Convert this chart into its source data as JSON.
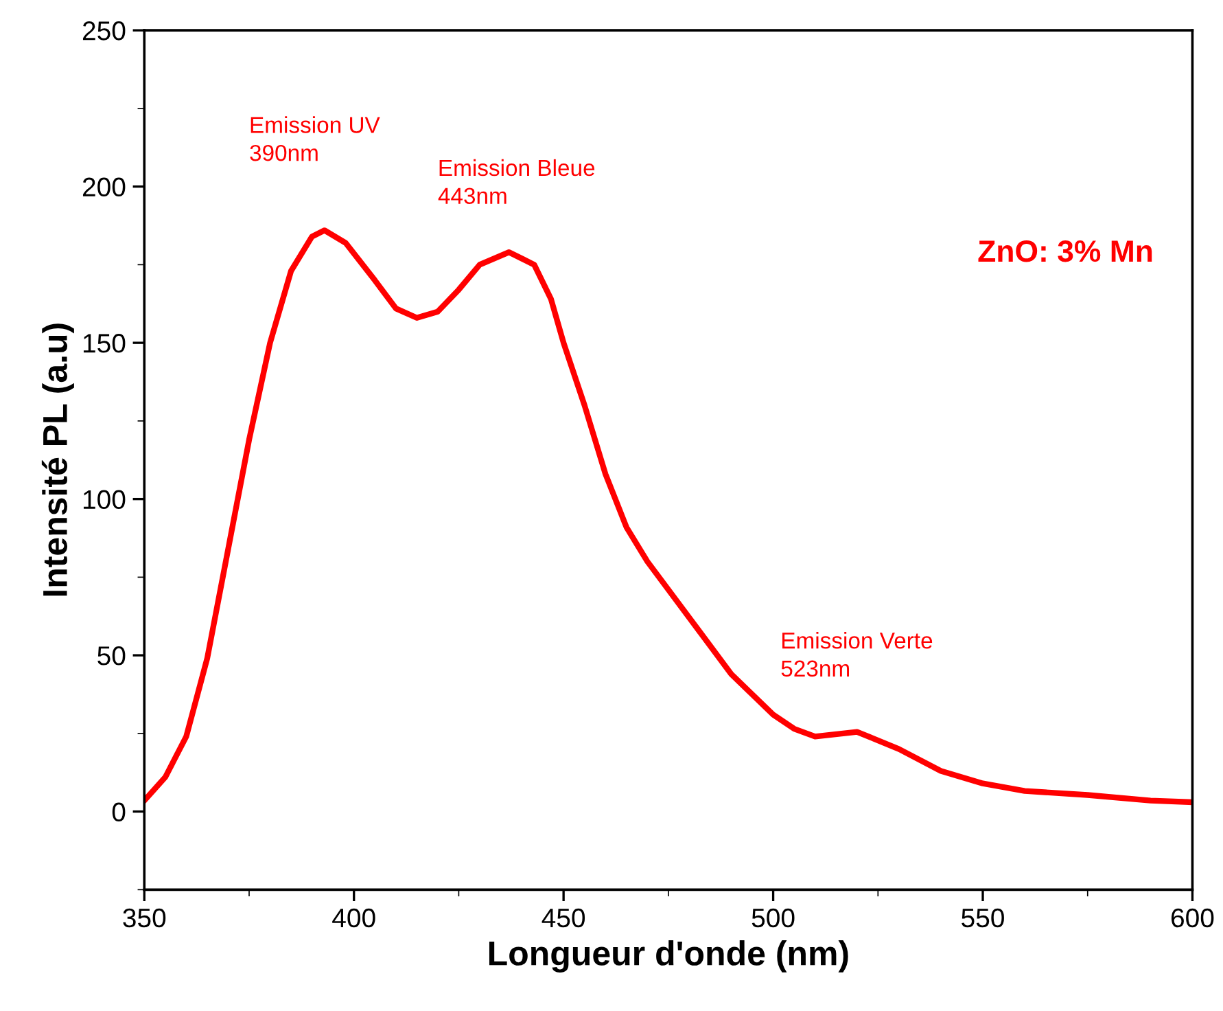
{
  "chart_data": {
    "type": "line",
    "xlabel": "Longueur d'onde (nm)",
    "ylabel": "Intensité PL (a.u)",
    "x": [
      350,
      355,
      360,
      365,
      370,
      375,
      380,
      385,
      390,
      393,
      398,
      405,
      410,
      415,
      420,
      425,
      430,
      437,
      443,
      447,
      450,
      455,
      460,
      465,
      470,
      480,
      490,
      500,
      505,
      510,
      520,
      530,
      540,
      550,
      560,
      575,
      590,
      600
    ],
    "series": [
      {
        "color": "#ff0000",
        "values": [
          3.5,
          11,
          24,
          49,
          84,
          119,
          150,
          173,
          184,
          186,
          182,
          170,
          161,
          158,
          160,
          167,
          175,
          179,
          175,
          164,
          150,
          130,
          108,
          91,
          80,
          62,
          44,
          31,
          26.5,
          24,
          25.5,
          20,
          13,
          9,
          6.6,
          5.3,
          3.5,
          3
        ]
      }
    ],
    "xlim": [
      350,
      600
    ],
    "xticks": [
      350,
      400,
      450,
      500,
      550,
      600
    ],
    "ylim": [
      -25,
      250
    ],
    "yticks": [
      0,
      50,
      100,
      150,
      200,
      250
    ],
    "grid": false,
    "legend": false,
    "marker": "none",
    "line_style": "solid",
    "annotations": [
      "Emission UV\n390nm",
      "Emission Bleue\n443nm",
      "Emission Verte\n523nm",
      "ZnO: 3% Mn"
    ]
  }
}
